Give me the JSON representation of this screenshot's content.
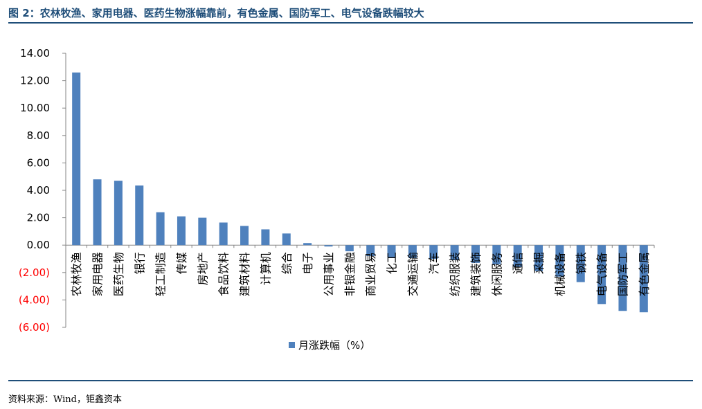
{
  "header": {
    "title": "图 2：农林牧渔、家用电器、医药生物涨幅靠前，有色金属、国防军工、电气设备跌幅较大"
  },
  "footer": {
    "source": "资料来源：Wind，钜鑫资本"
  },
  "colors": {
    "bar": "#4f81bd",
    "rule": "#1f4e79",
    "negative_tick": "#ff0000",
    "grid": "#d9d9d9"
  },
  "chart_data": {
    "type": "bar",
    "categories": [
      "农林牧渔",
      "家用电器",
      "医药生物",
      "银行",
      "轻工制造",
      "传媒",
      "房地产",
      "食品饮料",
      "建筑材料",
      "计算机",
      "综合",
      "电子",
      "公用事业",
      "非银金融",
      "商业贸易",
      "化工",
      "交通运输",
      "汽车",
      "纺织服装",
      "建筑装饰",
      "休闲服务",
      "通信",
      "采掘",
      "机械设备",
      "钢铁",
      "电气设备",
      "国防军工",
      "有色金属"
    ],
    "series": [
      {
        "name": "月涨跌幅（%）",
        "values": [
          12.6,
          4.8,
          4.7,
          4.35,
          2.4,
          2.1,
          2.0,
          1.65,
          1.4,
          1.15,
          0.85,
          0.15,
          -0.1,
          -0.45,
          -0.8,
          -0.9,
          -0.95,
          -1.0,
          -1.1,
          -1.3,
          -1.4,
          -1.6,
          -1.9,
          -2.3,
          -2.7,
          -4.3,
          -4.8,
          -4.9
        ]
      }
    ],
    "ylim": [
      -6,
      14
    ],
    "yticks": [
      14,
      12,
      10,
      8,
      6,
      4,
      2,
      0,
      -2,
      -4,
      -6
    ],
    "ytick_labels": [
      "14.00",
      "12.00",
      "10.00",
      "8.00",
      "6.00",
      "4.00",
      "2.00",
      "0.00",
      "(2.00)",
      "(4.00)",
      "(6.00)"
    ],
    "grid": false,
    "legend": "bottom-center"
  }
}
